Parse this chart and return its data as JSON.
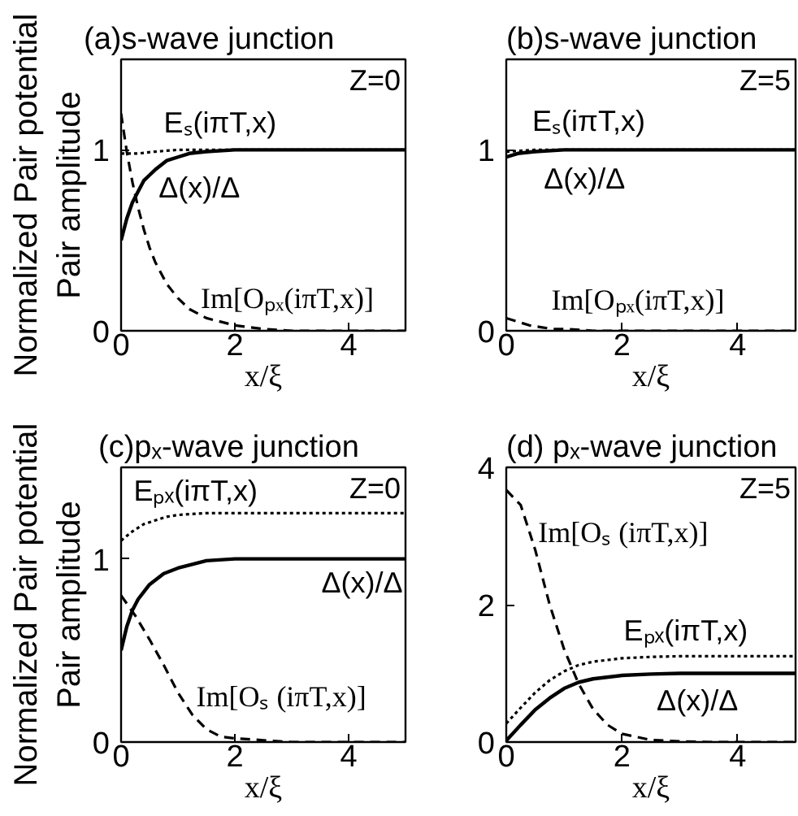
{
  "chart_data": [
    {
      "type": "line",
      "title": "(a)s-wave junction",
      "xlabel": "x/ξ",
      "ylabel": "Normalized Pair potential\nPair amplitude",
      "xlim": [
        0,
        5
      ],
      "ylim": [
        0,
        1.5
      ],
      "xticks": [
        0,
        2,
        4
      ],
      "yticks": [
        0,
        1
      ],
      "annotations": [
        "Z=0"
      ],
      "series": [
        {
          "name": "Eₛ(iπT,x)",
          "color": "#000000",
          "line_style": "dotted",
          "x": [
            0,
            0.3,
            0.6,
            1,
            2,
            3,
            4,
            5
          ],
          "values": [
            0.98,
            0.98,
            0.99,
            1,
            1,
            1,
            1,
            1
          ]
        },
        {
          "name": "Δ(x)/Δ",
          "color": "#000000",
          "line_style": "solid",
          "x": [
            0,
            0.1,
            0.2,
            0.3,
            0.4,
            0.5,
            0.6,
            0.8,
            1.0,
            1.2,
            1.5,
            2,
            3,
            4,
            5
          ],
          "values": [
            0.5,
            0.62,
            0.71,
            0.77,
            0.83,
            0.86,
            0.89,
            0.94,
            0.96,
            0.98,
            0.99,
            1,
            1,
            1,
            1
          ]
        },
        {
          "name": "Im[Oₚₓ(iπT,x)]",
          "color": "#000000",
          "line_style": "dashed",
          "x": [
            0,
            0.1,
            0.2,
            0.3,
            0.4,
            0.5,
            0.6,
            0.8,
            1.0,
            1.2,
            1.5,
            2,
            2.5,
            3,
            4,
            5
          ],
          "values": [
            1.2,
            0.99,
            0.82,
            0.68,
            0.56,
            0.46,
            0.38,
            0.26,
            0.18,
            0.12,
            0.07,
            0.03,
            0.01,
            0,
            0,
            0
          ]
        }
      ]
    },
    {
      "type": "line",
      "title": "(b)s-wave junction",
      "xlabel": "x/ξ",
      "xlim": [
        0,
        5
      ],
      "ylim": [
        0,
        1.5
      ],
      "xticks": [
        0,
        2,
        4
      ],
      "yticks": [
        0,
        1
      ],
      "annotations": [
        "Z=5"
      ],
      "series": [
        {
          "name": "Eₛ(iπT,x)",
          "color": "#000000",
          "line_style": "dotted",
          "x": [
            0,
            0.5,
            1,
            2,
            3,
            4,
            5
          ],
          "values": [
            0.99,
            1,
            1,
            1,
            1,
            1,
            1
          ]
        },
        {
          "name": "Δ(x)/Δ",
          "color": "#000000",
          "line_style": "solid",
          "x": [
            0,
            0.2,
            0.5,
            1,
            2,
            3,
            4,
            5
          ],
          "values": [
            0.96,
            0.98,
            0.99,
            1,
            1,
            1,
            1,
            1
          ]
        },
        {
          "name": "Im[Oₚₓ(iπT,x)]",
          "color": "#000000",
          "line_style": "dashed",
          "x": [
            0,
            0.2,
            0.4,
            0.6,
            0.8,
            1,
            1.5,
            2,
            3,
            4,
            5
          ],
          "values": [
            0.07,
            0.05,
            0.03,
            0.02,
            0.01,
            0.01,
            0,
            0,
            0,
            0,
            0
          ]
        }
      ]
    },
    {
      "type": "line",
      "title": "(c)pₓ-wave junction",
      "xlabel": "x/ξ",
      "ylabel": "Normalized Pair potential\nPair amplitude",
      "xlim": [
        0,
        5
      ],
      "ylim": [
        0,
        1.5
      ],
      "xticks": [
        0,
        2,
        4
      ],
      "yticks": [
        0,
        1
      ],
      "annotations": [
        "Z=0"
      ],
      "series": [
        {
          "name": "Eₚₓ(iπT,x)",
          "color": "#000000",
          "line_style": "dotted",
          "x": [
            0,
            0.2,
            0.4,
            0.6,
            0.8,
            1,
            1.5,
            2,
            3,
            4,
            5
          ],
          "values": [
            1.1,
            1.15,
            1.19,
            1.21,
            1.23,
            1.24,
            1.25,
            1.25,
            1.25,
            1.25,
            1.25
          ]
        },
        {
          "name": "Δ(x)/Δ",
          "color": "#000000",
          "line_style": "solid",
          "x": [
            0,
            0.1,
            0.2,
            0.3,
            0.5,
            0.75,
            1,
            1.5,
            2,
            3,
            4,
            5
          ],
          "values": [
            0.5,
            0.63,
            0.72,
            0.78,
            0.86,
            0.92,
            0.95,
            0.99,
            1,
            1,
            1,
            1
          ]
        },
        {
          "name": "Im[Oₛ (iπT,x)]",
          "color": "#000000",
          "line_style": "dashed",
          "x": [
            0,
            0.25,
            0.5,
            0.75,
            1,
            1.25,
            1.5,
            1.75,
            2,
            2.5,
            3,
            4,
            5
          ],
          "values": [
            0.8,
            0.69,
            0.56,
            0.42,
            0.27,
            0.15,
            0.07,
            0.03,
            0.02,
            0.01,
            0,
            0,
            0
          ]
        }
      ]
    },
    {
      "type": "line",
      "title": "(d) pₓ-wave junction",
      "xlabel": "x/ξ",
      "xlim": [
        0,
        5
      ],
      "ylim": [
        0,
        4
      ],
      "xticks": [
        0,
        2,
        4
      ],
      "yticks": [
        0,
        2,
        4
      ],
      "annotations": [
        "Z=5"
      ],
      "series": [
        {
          "name": "Eₚₓ(iπT,x)",
          "color": "#000000",
          "line_style": "dotted",
          "x": [
            0,
            0.25,
            0.5,
            0.75,
            1,
            1.25,
            1.5,
            2,
            2.5,
            3,
            4,
            5
          ],
          "values": [
            0.27,
            0.5,
            0.72,
            0.9,
            1.03,
            1.12,
            1.17,
            1.22,
            1.24,
            1.25,
            1.25,
            1.25
          ]
        },
        {
          "name": "Δ(x)/Δ",
          "color": "#000000",
          "line_style": "solid",
          "x": [
            0,
            0.25,
            0.5,
            0.75,
            1,
            1.25,
            1.5,
            2,
            2.5,
            3,
            4,
            5
          ],
          "values": [
            0.02,
            0.25,
            0.47,
            0.64,
            0.78,
            0.87,
            0.92,
            0.97,
            0.99,
            1,
            1,
            1
          ]
        },
        {
          "name": "Im[Oₛ (iπT,x)]",
          "color": "#000000",
          "line_style": "dashed",
          "x": [
            0,
            0.25,
            0.5,
            0.75,
            1,
            1.25,
            1.5,
            1.75,
            2,
            2.5,
            3,
            3.5,
            4,
            5
          ],
          "values": [
            3.67,
            3.45,
            2.8,
            2.0,
            1.35,
            0.85,
            0.48,
            0.25,
            0.12,
            0.03,
            0.01,
            0,
            0,
            0
          ]
        }
      ]
    }
  ]
}
